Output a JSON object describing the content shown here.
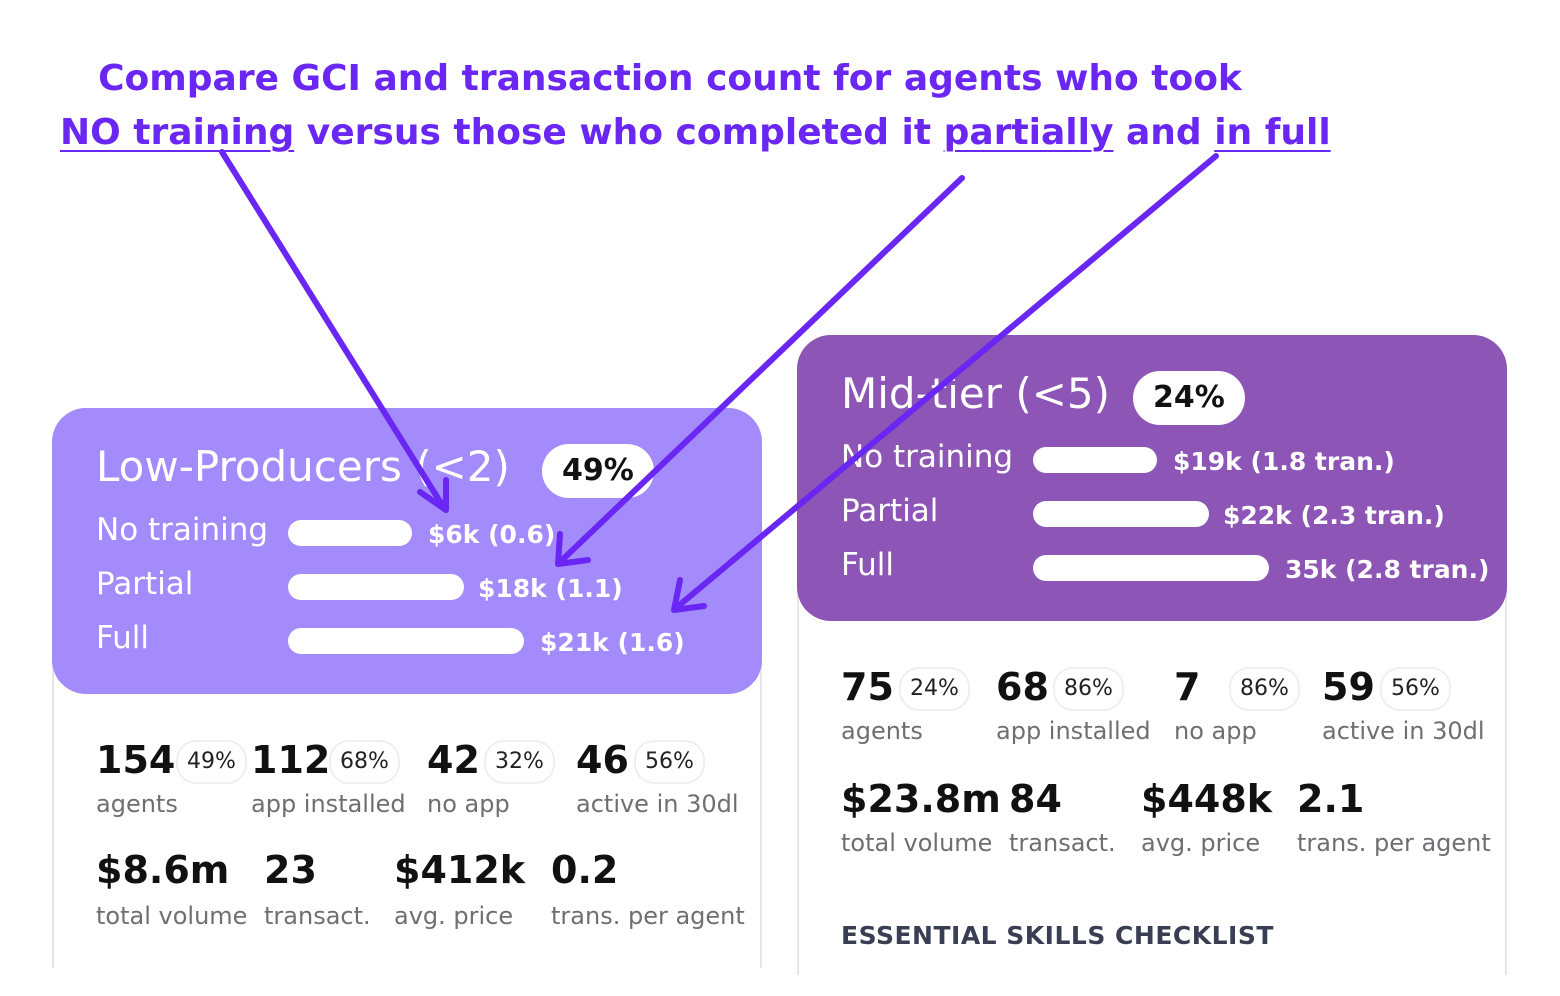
{
  "headline": {
    "line1": "Compare GCI and transaction count for agents who took",
    "line2_part1": "NO training",
    "line2_part2": " versus those who completed it ",
    "line2_part3": "partially",
    "line2_part4": " and ",
    "line2_part5": "in full"
  },
  "colors": {
    "accent": "#6a26f2",
    "low_card": "#a48bfc",
    "mid_card": "#8c55b6"
  },
  "low": {
    "title": "Low-Producers (<2)",
    "pct": "49%",
    "rows": [
      {
        "label": "No training",
        "value": "$6k (0.6)",
        "gci_k": 6
      },
      {
        "label": "Partial",
        "value": "$18k (1.1)",
        "gci_k": 18
      },
      {
        "label": "Full",
        "value": "$21k (1.6)",
        "gci_k": 21
      }
    ],
    "stats_row1": [
      {
        "value": "154",
        "badge": "49%",
        "caption": "agents"
      },
      {
        "value": "112",
        "badge": "68%",
        "caption": "app installed"
      },
      {
        "value": "42",
        "badge": "32%",
        "caption": "no app"
      },
      {
        "value": "46",
        "badge": "56%",
        "caption": "active in 30dl"
      }
    ],
    "stats_row2": [
      {
        "value": "$8.6m",
        "caption": "total volume"
      },
      {
        "value": "23",
        "caption": "transact."
      },
      {
        "value": "$412k",
        "caption": "avg. price"
      },
      {
        "value": "0.2",
        "caption": "trans. per agent"
      }
    ]
  },
  "mid": {
    "title": "Mid-tier (<5)",
    "pct": "24%",
    "rows": [
      {
        "label": "No training",
        "value": "$19k (1.8 tran.)",
        "gci_k": 19
      },
      {
        "label": "Partial",
        "value": "$22k (2.3 tran.)",
        "gci_k": 22
      },
      {
        "label": "Full",
        "value": "35k (2.8 tran.)",
        "gci_k": 35
      }
    ],
    "stats_row1": [
      {
        "value": "75",
        "badge": "24%",
        "caption": "agents"
      },
      {
        "value": "68",
        "badge": "86%",
        "caption": "app installed"
      },
      {
        "value": "7",
        "badge": "86%",
        "caption": "no app"
      },
      {
        "value": "59",
        "badge": "56%",
        "caption": "active in 30dl"
      }
    ],
    "stats_row2": [
      {
        "value": "$23.8m",
        "caption": "total volume"
      },
      {
        "value": "84",
        "caption": "transact."
      },
      {
        "value": "$448k",
        "caption": "avg. price"
      },
      {
        "value": "2.1",
        "caption": "trans. per agent"
      }
    ],
    "checklist_title": "ESSENTIAL SKILLS CHECKLIST"
  }
}
